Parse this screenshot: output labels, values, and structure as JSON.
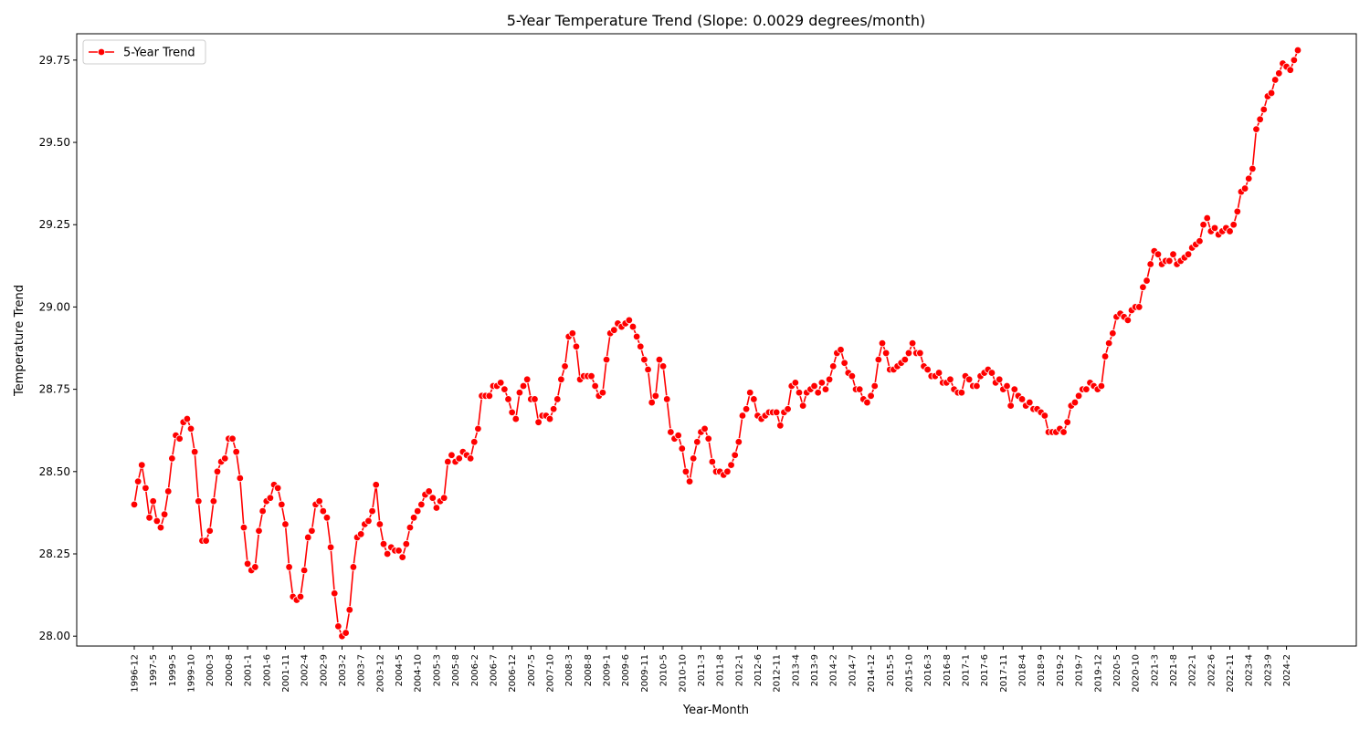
{
  "chart_data": {
    "type": "line",
    "title": "5-Year Temperature Trend (Slope: 0.0029 degrees/month)",
    "xlabel": "Year-Month",
    "ylabel": "Temperature Trend",
    "ylim": [
      27.97,
      29.83
    ],
    "y_ticks": [
      "28.00",
      "28.25",
      "28.50",
      "28.75",
      "29.00",
      "29.25",
      "29.50",
      "29.75"
    ],
    "x_tick_labels": [
      "1996-12",
      "1997-5",
      "1999-5",
      "1999-10",
      "2000-3",
      "2000-8",
      "2001-1",
      "2001-6",
      "2001-11",
      "2002-4",
      "2002-9",
      "2003-2",
      "2003-7",
      "2003-12",
      "2004-5",
      "2004-10",
      "2005-3",
      "2005-8",
      "2006-2",
      "2006-7",
      "2006-12",
      "2007-5",
      "2007-10",
      "2008-3",
      "2008-8",
      "2009-1",
      "2009-6",
      "2009-11",
      "2010-5",
      "2010-10",
      "2011-3",
      "2011-8",
      "2012-1",
      "2012-6",
      "2012-11",
      "2013-4",
      "2013-9",
      "2014-2",
      "2014-7",
      "2014-12",
      "2015-5",
      "2015-10",
      "2016-3",
      "2016-8",
      "2017-1",
      "2017-6",
      "2017-11",
      "2018-4",
      "2018-9",
      "2019-2",
      "2019-7",
      "2019-12",
      "2020-5",
      "2020-10",
      "2021-3",
      "2021-8",
      "2022-1",
      "2022-6",
      "2022-11",
      "2023-4",
      "2023-9",
      "2024-2"
    ],
    "grid": false,
    "legend_position": "top-left",
    "series": [
      {
        "name": "5-Year Trend",
        "color": "#ff0000",
        "marker": "circle",
        "values": [
          28.4,
          28.47,
          28.52,
          28.45,
          28.36,
          28.41,
          28.35,
          28.33,
          28.37,
          28.44,
          28.54,
          28.61,
          28.6,
          28.65,
          28.66,
          28.63,
          28.56,
          28.41,
          28.29,
          28.29,
          28.32,
          28.41,
          28.5,
          28.53,
          28.54,
          28.6,
          28.6,
          28.56,
          28.48,
          28.33,
          28.22,
          28.2,
          28.21,
          28.32,
          28.38,
          28.41,
          28.42,
          28.46,
          28.45,
          28.4,
          28.34,
          28.21,
          28.12,
          28.11,
          28.12,
          28.2,
          28.3,
          28.32,
          28.4,
          28.41,
          28.38,
          28.36,
          28.27,
          28.13,
          28.03,
          28.0,
          28.01,
          28.08,
          28.21,
          28.3,
          28.31,
          28.34,
          28.35,
          28.38,
          28.46,
          28.34,
          28.28,
          28.25,
          28.27,
          28.26,
          28.26,
          28.24,
          28.28,
          28.33,
          28.36,
          28.38,
          28.4,
          28.43,
          28.44,
          28.42,
          28.39,
          28.41,
          28.42,
          28.53,
          28.55,
          28.53,
          28.54,
          28.56,
          28.55,
          28.54,
          28.59,
          28.63,
          28.73,
          28.73,
          28.73,
          28.76,
          28.76,
          28.77,
          28.75,
          28.72,
          28.68,
          28.66,
          28.74,
          28.76,
          28.78,
          28.72,
          28.72,
          28.65,
          28.67,
          28.67,
          28.66,
          28.69,
          28.72,
          28.78,
          28.82,
          28.91,
          28.92,
          28.88,
          28.78,
          28.79,
          28.79,
          28.79,
          28.76,
          28.73,
          28.74,
          28.84,
          28.92,
          28.93,
          28.95,
          28.94,
          28.95,
          28.96,
          28.94,
          28.91,
          28.88,
          28.84,
          28.81,
          28.71,
          28.73,
          28.84,
          28.82,
          28.72,
          28.62,
          28.6,
          28.61,
          28.57,
          28.5,
          28.47,
          28.54,
          28.59,
          28.62,
          28.63,
          28.6,
          28.53,
          28.5,
          28.5,
          28.49,
          28.5,
          28.52,
          28.55,
          28.59,
          28.67,
          28.69,
          28.74,
          28.72,
          28.67,
          28.66,
          28.67,
          28.68,
          28.68,
          28.68,
          28.64,
          28.68,
          28.69,
          28.76,
          28.77,
          28.74,
          28.7,
          28.74,
          28.75,
          28.76,
          28.74,
          28.77,
          28.75,
          28.78,
          28.82,
          28.86,
          28.87,
          28.83,
          28.8,
          28.79,
          28.75,
          28.75,
          28.72,
          28.71,
          28.73,
          28.76,
          28.84,
          28.89,
          28.86,
          28.81,
          28.81,
          28.82,
          28.83,
          28.84,
          28.86,
          28.89,
          28.86,
          28.86,
          28.82,
          28.81,
          28.79,
          28.79,
          28.8,
          28.77,
          28.77,
          28.78,
          28.75,
          28.74,
          28.74,
          28.79,
          28.78,
          28.76,
          28.76,
          28.79,
          28.8,
          28.81,
          28.8,
          28.77,
          28.78,
          28.75,
          28.76,
          28.7,
          28.75,
          28.73,
          28.72,
          28.7,
          28.71,
          28.69,
          28.69,
          28.68,
          28.67,
          28.62,
          28.62,
          28.62,
          28.63,
          28.62,
          28.65,
          28.7,
          28.71,
          28.73,
          28.75,
          28.75,
          28.77,
          28.76,
          28.75,
          28.76,
          28.85,
          28.89,
          28.92,
          28.97,
          28.98,
          28.97,
          28.96,
          28.99,
          29.0,
          29.0,
          29.06,
          29.08,
          29.13,
          29.17,
          29.16,
          29.13,
          29.14,
          29.14,
          29.16,
          29.13,
          29.14,
          29.15,
          29.16,
          29.18,
          29.19,
          29.2,
          29.25,
          29.27,
          29.23,
          29.24,
          29.22,
          29.23,
          29.24,
          29.23,
          29.25,
          29.29,
          29.35,
          29.36,
          29.39,
          29.42,
          29.54,
          29.57,
          29.6,
          29.64,
          29.65,
          29.69,
          29.71,
          29.74,
          29.73,
          29.72,
          29.75,
          29.78
        ]
      }
    ]
  }
}
